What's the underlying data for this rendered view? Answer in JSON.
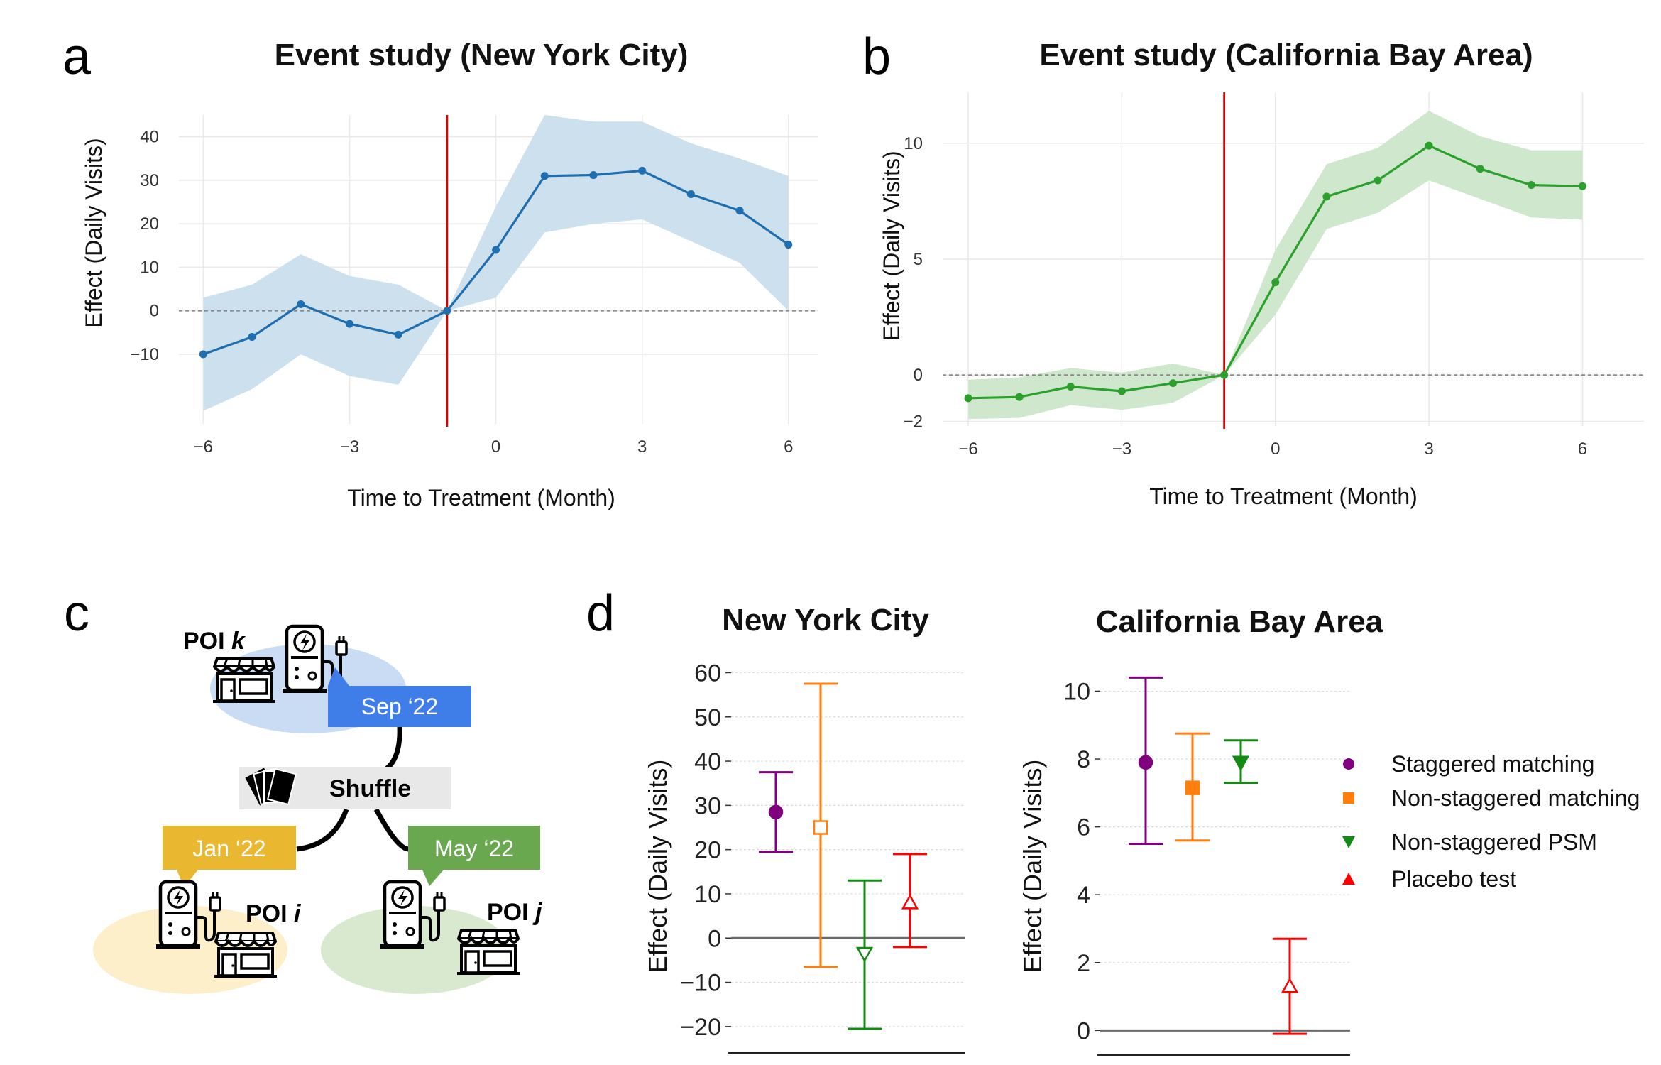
{
  "panels": {
    "a": "a",
    "b": "b",
    "c": "c",
    "d": "d"
  },
  "chart_data": [
    {
      "id": "panel-a",
      "type": "line",
      "title": "Event study (New York City)",
      "xlabel": "Time to Treatment (Month)",
      "ylabel": "Effect (Daily Visits)",
      "x": [
        -6,
        -5,
        -4,
        -3,
        -2,
        -1,
        0,
        1,
        2,
        3,
        4,
        5,
        6
      ],
      "values": [
        -10,
        -6,
        1.5,
        -3,
        -5.5,
        0,
        14,
        31,
        31.2,
        32.2,
        26.8,
        23,
        15.2
      ],
      "ci_lower": [
        -23,
        -18,
        -10,
        -15,
        -17,
        0,
        3,
        18,
        20,
        21,
        16,
        11,
        0
      ],
      "ci_upper": [
        3,
        6,
        13,
        8,
        6,
        0,
        24,
        45,
        43.5,
        43.5,
        38.5,
        35,
        31
      ],
      "xticks": [
        -6,
        -3,
        0,
        3,
        6
      ],
      "xtick_labels": [
        "−6",
        "−3",
        "0",
        "3",
        "6"
      ],
      "yticks": [
        -10,
        0,
        10,
        20,
        30,
        40
      ],
      "ytick_labels": [
        "−10",
        "0",
        "10",
        "20",
        "30",
        "40"
      ],
      "xlim": [
        -6.5,
        6.6
      ],
      "ylim": [
        -26,
        45
      ],
      "treatment_line_x": -1,
      "color": "#1f6fb0",
      "band_color": "#cde0ee"
    },
    {
      "id": "panel-b",
      "type": "line",
      "title": "Event study (California Bay Area)",
      "xlabel": "Time to Treatment (Month)",
      "ylabel": "Effect (Daily Visits)",
      "x": [
        -6,
        -5,
        -4,
        -3,
        -2,
        -1,
        0,
        1,
        2,
        3,
        4,
        5,
        6
      ],
      "values": [
        -1,
        -0.95,
        -0.5,
        -0.7,
        -0.35,
        0,
        4,
        7.7,
        8.4,
        9.9,
        8.9,
        8.2,
        8.15
      ],
      "ci_lower": [
        -1.9,
        -1.85,
        -1.3,
        -1.5,
        -1.2,
        0,
        2.6,
        6.3,
        7.0,
        8.4,
        7.6,
        6.8,
        6.7
      ],
      "ci_upper": [
        -0.2,
        -0.1,
        0.3,
        0.1,
        0.5,
        0,
        5.4,
        9.1,
        9.8,
        11.4,
        10.3,
        9.7,
        9.7
      ],
      "xticks": [
        -6,
        -3,
        0,
        3,
        6
      ],
      "xtick_labels": [
        "−6",
        "−3",
        "0",
        "3",
        "6"
      ],
      "yticks": [
        -2,
        0,
        5,
        10
      ],
      "ytick_labels": [
        "−2",
        "0",
        "5",
        "10"
      ],
      "xlim": [
        -6.5,
        7.2
      ],
      "ylim": [
        -2.2,
        12.2
      ],
      "treatment_line_x": -1,
      "color": "#2ca02c",
      "band_color": "#cfe8cd"
    },
    {
      "id": "panel-d-nyc",
      "type": "errorbar",
      "title": "New York City",
      "ylabel": "Effect (Daily Visits)",
      "yticks": [
        -20,
        -10,
        0,
        10,
        20,
        30,
        40,
        50,
        60
      ],
      "ytick_labels": [
        "−20",
        "−10",
        "0",
        "10",
        "20",
        "30",
        "40",
        "50",
        "60"
      ],
      "ylim": [
        -25,
        62
      ],
      "series": [
        {
          "name": "Staggered matching",
          "value": 28.5,
          "lower": 19.5,
          "upper": 37.5
        },
        {
          "name": "Non-staggered matching",
          "value": 25,
          "lower": -6.5,
          "upper": 57.5
        },
        {
          "name": "Non-staggered PSM",
          "value": -3.5,
          "lower": -20.5,
          "upper": 13
        },
        {
          "name": "Placebo test",
          "value": 8,
          "lower": -2,
          "upper": 19
        }
      ]
    },
    {
      "id": "panel-d-bay",
      "type": "errorbar",
      "title": "California Bay Area",
      "ylabel": "Effect (Daily Visits)",
      "yticks": [
        0,
        2,
        4,
        6,
        8,
        10
      ],
      "ytick_labels": [
        "0",
        "2",
        "4",
        "6",
        "8",
        "10"
      ],
      "ylim": [
        -0.6,
        10.7
      ],
      "series": [
        {
          "name": "Staggered matching",
          "value": 7.9,
          "lower": 5.5,
          "upper": 10.4
        },
        {
          "name": "Non-staggered matching",
          "value": 7.15,
          "lower": 5.6,
          "upper": 8.75
        },
        {
          "name": "Non-staggered PSM",
          "value": 7.9,
          "lower": 7.3,
          "upper": 8.55
        },
        {
          "name": "Placebo test",
          "value": 1.3,
          "lower": -0.1,
          "upper": 2.7
        }
      ]
    }
  ],
  "legend": [
    {
      "label": "Staggered matching",
      "color": "#800080",
      "marker": "circle"
    },
    {
      "label": "Non-staggered matching",
      "color": "#ff7f0e",
      "marker": "square"
    },
    {
      "label": "Non-staggered PSM",
      "color": "#138a13",
      "marker": "triangle-down"
    },
    {
      "label": "Placebo test",
      "color": "#ff0000",
      "marker": "triangle-up"
    }
  ],
  "diagram": {
    "poi_k": {
      "prefix": "POI ",
      "var": "k",
      "date": "Sep ‘22",
      "date_color": "#3f7ee8",
      "bg": "#c9dcf4"
    },
    "poi_i": {
      "prefix": "POI ",
      "var": "i",
      "date": "Jan ‘22",
      "date_color": "#e9b730",
      "bg": "#fcefc9"
    },
    "poi_j": {
      "prefix": "POI ",
      "var": "j",
      "date": "May ‘22",
      "date_color": "#6aa84f",
      "bg": "#d9e9cf"
    },
    "shuffle": "Shuffle",
    "shuffle_bg": "#e8e8e8"
  }
}
